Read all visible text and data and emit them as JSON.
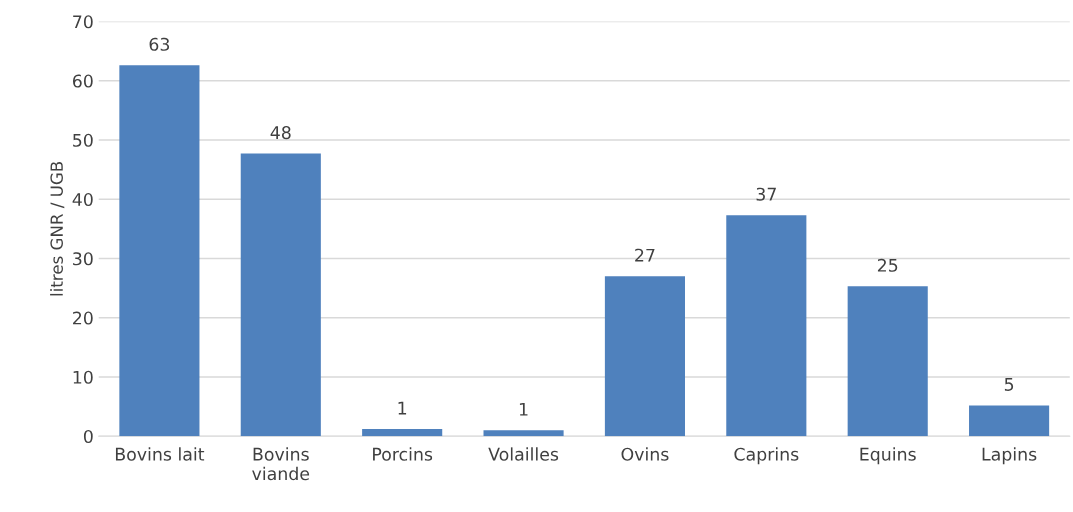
{
  "chart_data": {
    "type": "bar",
    "ylabel": "litres GNR / UGB",
    "categories": [
      "Bovins lait",
      "Bovins viande",
      "Porcins",
      "Volailles",
      "Ovins",
      "Caprins",
      "Equins",
      "Lapins"
    ],
    "values": [
      62.6,
      47.7,
      1.2,
      1.0,
      27.0,
      37.3,
      25.3,
      5.2
    ],
    "value_labels": [
      "63",
      "48",
      "1",
      "1",
      "27",
      "37",
      "25",
      "5"
    ],
    "color": "#4f81bd",
    "ylim": [
      0,
      70
    ],
    "yticks": [
      0,
      10,
      20,
      30,
      40,
      50,
      60,
      70
    ],
    "grid": "y",
    "legend": false
  }
}
